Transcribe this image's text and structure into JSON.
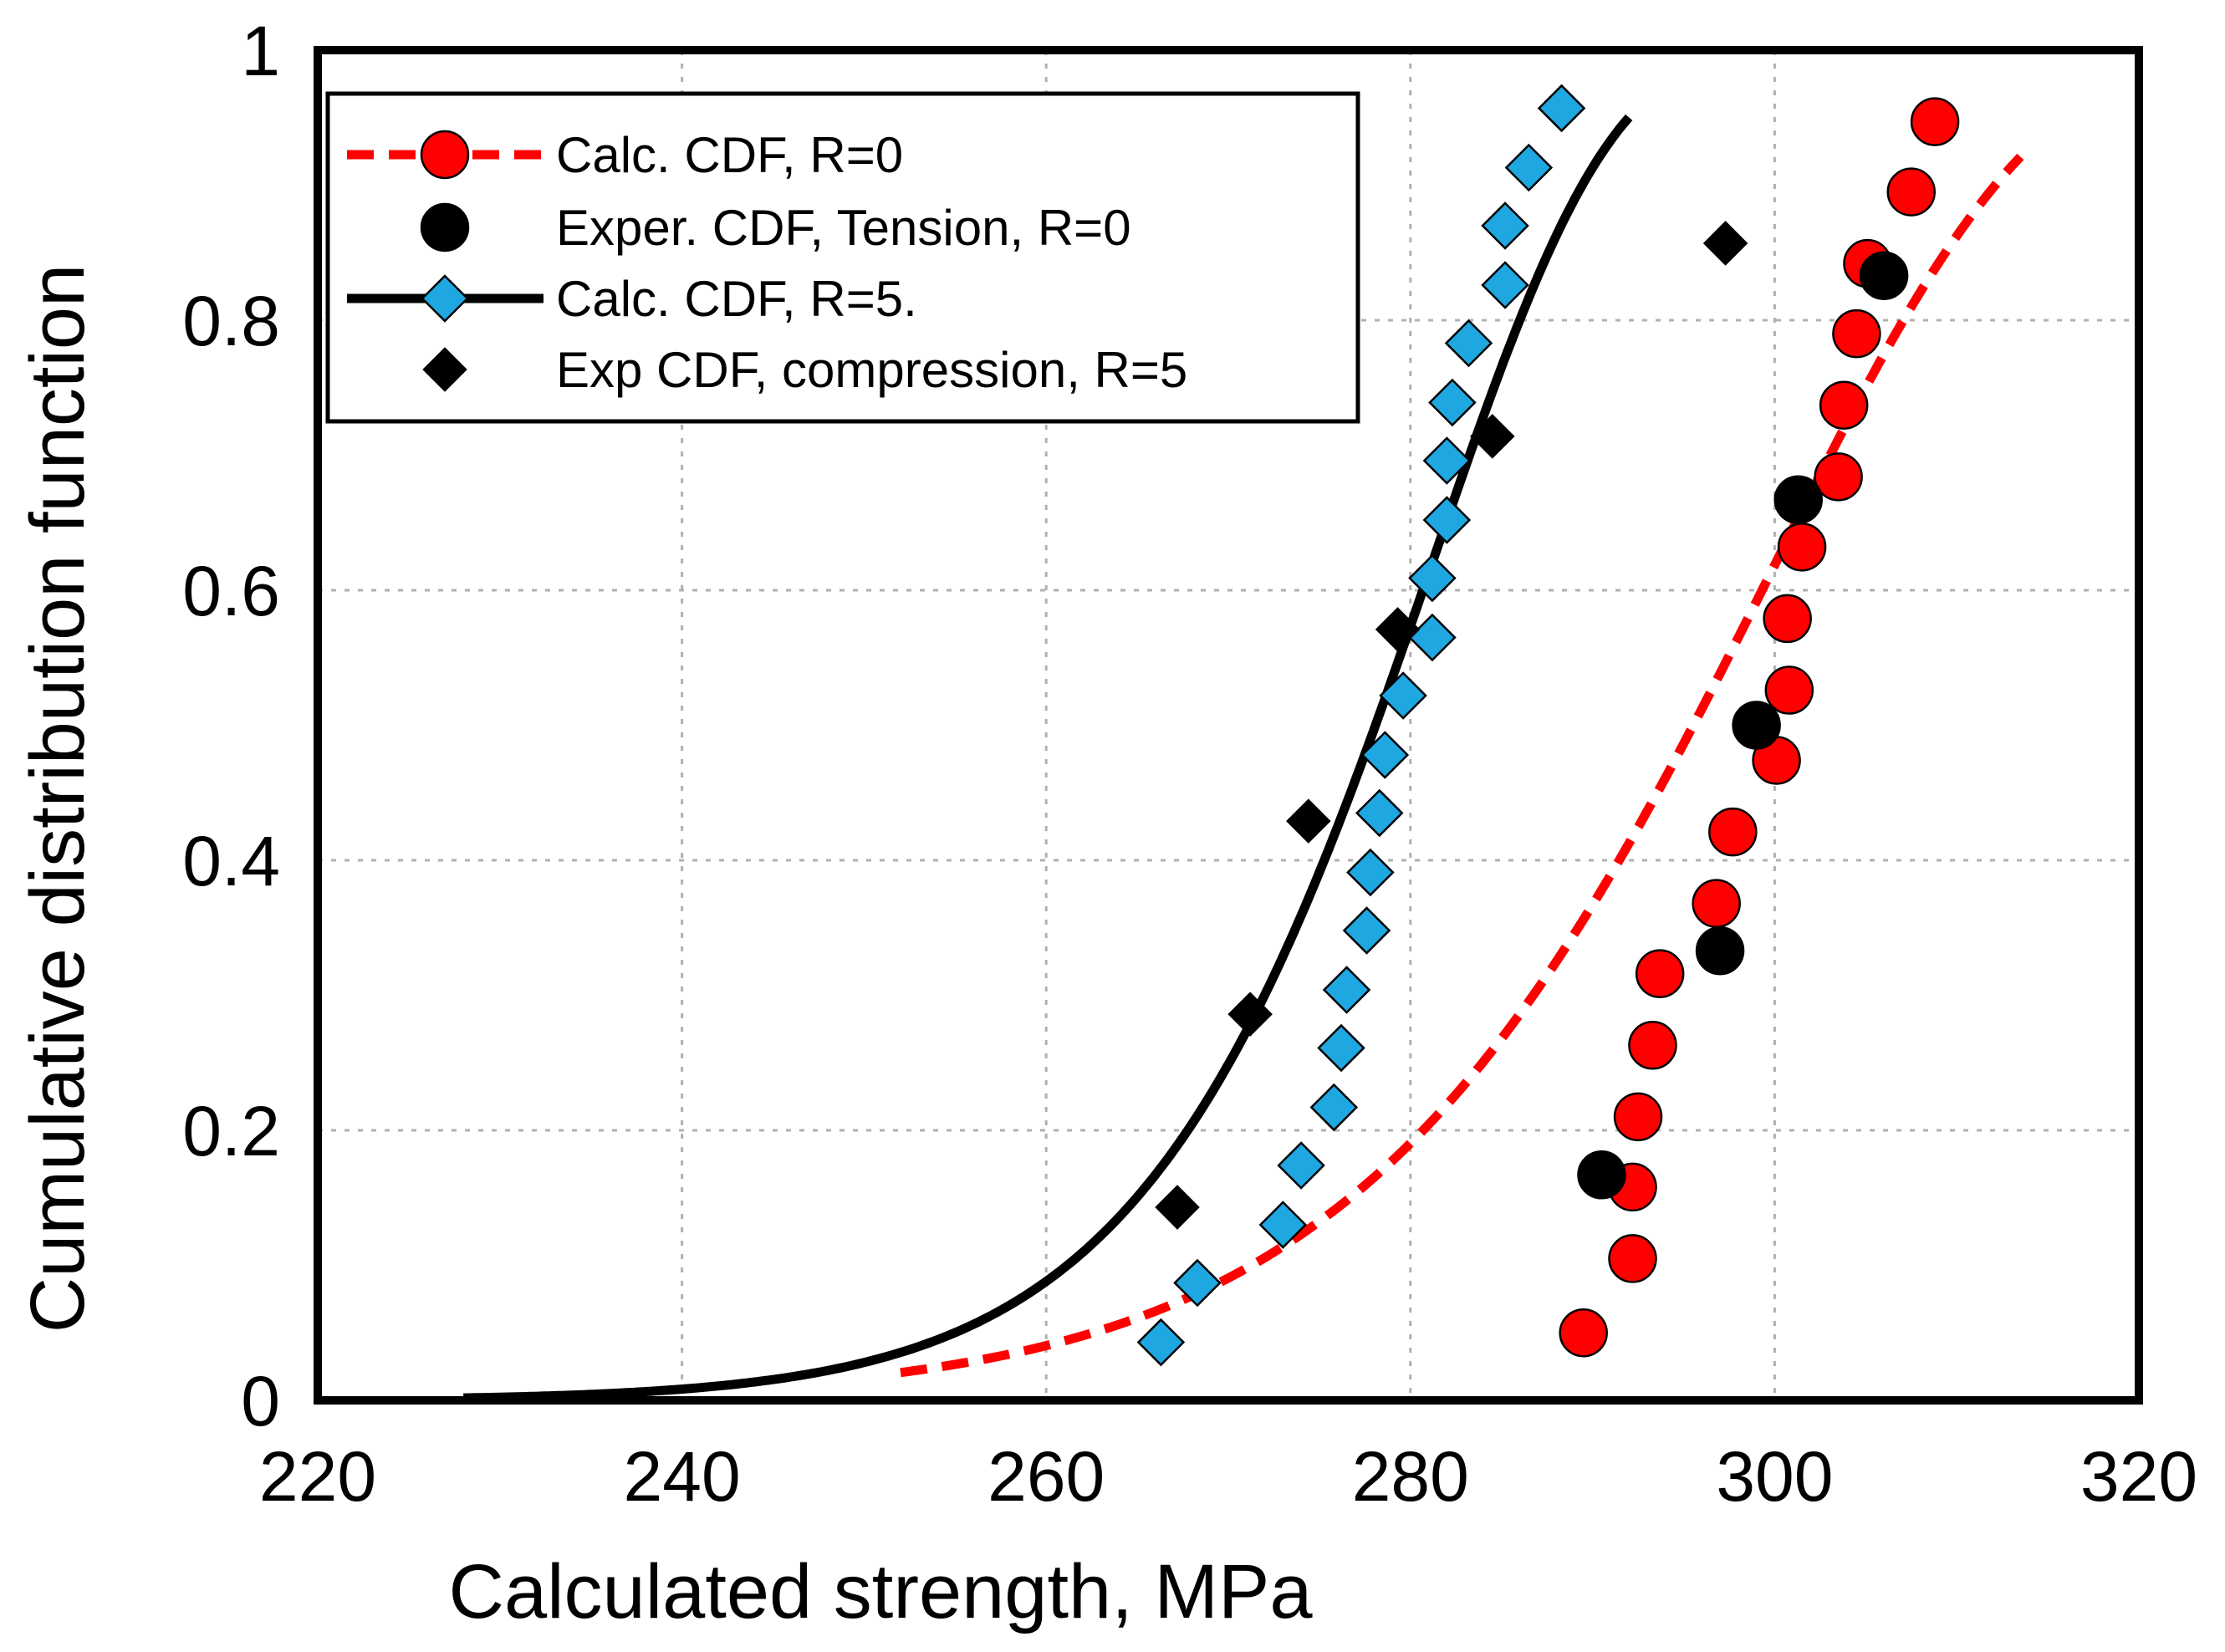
{
  "chart_data": {
    "type": "scatter",
    "title": "",
    "xlabel": "Calculated strength, MPa",
    "ylabel": "Cumulative distribution function",
    "xlim": [
      220,
      320
    ],
    "ylim": [
      0,
      1
    ],
    "grid": true,
    "legend_position": "top-left",
    "x_ticks": [
      220,
      240,
      260,
      280,
      300,
      320
    ],
    "x_tick_labels": [
      "220",
      "240",
      "260",
      "280",
      "300",
      "320"
    ],
    "y_ticks": [
      0,
      0.2,
      0.4,
      0.6,
      0.8,
      1
    ],
    "y_tick_labels": [
      "0",
      "0.2",
      "0.4",
      "0.6",
      "0.8",
      "1"
    ],
    "colors": {
      "red": "#ff0000",
      "blue": "#1ea7e1",
      "black": "#000000",
      "grid": "#b0b0b0"
    },
    "series": [
      {
        "name": "Calc. CDF, R=0",
        "style": "dashed-line-circle",
        "color": "#ff0000",
        "curve": {
          "kind": "weibull",
          "shape": 22,
          "scale": 300.5,
          "x": [
            252,
            313.5
          ]
        },
        "marker": "circle",
        "points": [
          [
            289.5,
            0.05
          ],
          [
            292.2,
            0.105
          ],
          [
            292.2,
            0.158
          ],
          [
            292.5,
            0.21
          ],
          [
            293.3,
            0.263
          ],
          [
            293.7,
            0.316
          ],
          [
            296.8,
            0.368
          ],
          [
            297.7,
            0.421
          ],
          [
            300.1,
            0.474
          ],
          [
            300.8,
            0.526
          ],
          [
            300.7,
            0.579
          ],
          [
            301.5,
            0.632
          ],
          [
            303.5,
            0.684
          ],
          [
            303.8,
            0.737
          ],
          [
            304.5,
            0.79
          ],
          [
            305.1,
            0.842
          ],
          [
            307.5,
            0.895
          ],
          [
            308.8,
            0.947
          ]
        ]
      },
      {
        "name": "Exper. CDF, Tension, R=0",
        "style": "marker-only",
        "color": "#000000",
        "marker": "circle",
        "points": [
          [
            290.5,
            0.167
          ],
          [
            297.0,
            0.333
          ],
          [
            299.0,
            0.5
          ],
          [
            301.3,
            0.667
          ],
          [
            306.0,
            0.833
          ]
        ]
      },
      {
        "name": "Calc. CDF, R=5.",
        "style": "solid-line-diamond",
        "color": "#000000",
        "marker_color": "#1ea7e1",
        "curve": {
          "kind": "weibull",
          "shape": 30,
          "scale": 281.5,
          "x": [
            228,
            292
          ]
        },
        "marker": "diamond",
        "points": [
          [
            266.3,
            0.043
          ],
          [
            268.3,
            0.087
          ],
          [
            273.0,
            0.13
          ],
          [
            274.0,
            0.174
          ],
          [
            275.8,
            0.217
          ],
          [
            276.2,
            0.261
          ],
          [
            276.5,
            0.304
          ],
          [
            277.6,
            0.348
          ],
          [
            277.8,
            0.391
          ],
          [
            278.3,
            0.435
          ],
          [
            278.6,
            0.478
          ],
          [
            279.6,
            0.522
          ],
          [
            281.2,
            0.565
          ],
          [
            281.2,
            0.609
          ],
          [
            282.0,
            0.652
          ],
          [
            282.0,
            0.696
          ],
          [
            282.3,
            0.739
          ],
          [
            283.2,
            0.783
          ],
          [
            285.2,
            0.826
          ],
          [
            285.2,
            0.87
          ],
          [
            286.5,
            0.913
          ],
          [
            288.3,
            0.957
          ]
        ]
      },
      {
        "name": "Exp CDF, compression, R=5",
        "style": "marker-only",
        "color": "#000000",
        "marker": "diamond",
        "points": [
          [
            267.2,
            0.143
          ],
          [
            271.2,
            0.286
          ],
          [
            274.4,
            0.429
          ],
          [
            279.3,
            0.571
          ],
          [
            284.5,
            0.714
          ],
          [
            297.3,
            0.857
          ]
        ]
      }
    ]
  }
}
